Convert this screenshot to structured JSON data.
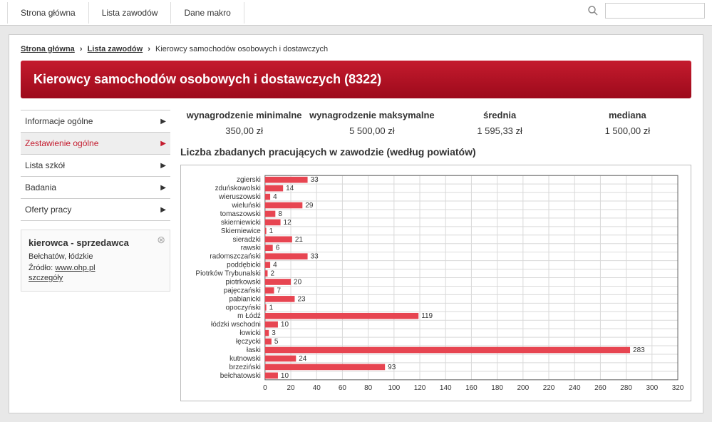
{
  "topnav": {
    "home": "Strona główna",
    "jobs": "Lista zawodów",
    "macro": "Dane makro"
  },
  "search": {
    "placeholder": ""
  },
  "breadcrumb": {
    "home": "Strona główna",
    "jobs": "Lista zawodów",
    "current": "Kierowcy samochodów osobowych i dostawczych"
  },
  "title": "Kierowcy samochodów osobowych i dostawczych (8322)",
  "sideMenu": {
    "items": [
      {
        "label": "Informacje ogólne",
        "active": false
      },
      {
        "label": "Zestawienie ogólne",
        "active": true
      },
      {
        "label": "Lista szkół",
        "active": false
      },
      {
        "label": "Badania",
        "active": false
      },
      {
        "label": "Oferty pracy",
        "active": false
      }
    ]
  },
  "infobox": {
    "title": "kierowca - sprzedawca",
    "location": "Bełchatów, łódzkie",
    "source_prefix": "Źródło: ",
    "source_link": "www.ohp.pl",
    "details": "szczegóły"
  },
  "stats": {
    "min": {
      "label": "wynagrodzenie minimalne",
      "value": "350,00 zł"
    },
    "max": {
      "label": "wynagrodzenie maksymalne",
      "value": "5 500,00 zł"
    },
    "avg": {
      "label": "średnia",
      "value": "1 595,33 zł"
    },
    "median": {
      "label": "mediana",
      "value": "1 500,00 zł"
    }
  },
  "chart": {
    "title": "Liczba zbadanych pracujących w zawodzie (według powiatów)",
    "type": "bar-horizontal",
    "bar_color": "#e74551",
    "grid_color": "#d9d9d9",
    "border_color": "#666666",
    "label_fontsize": 10,
    "value_fontsize": 10,
    "xlim": [
      0,
      320
    ],
    "xtick_step": 20,
    "categories": [
      "zgierski",
      "zduńskowolski",
      "wieruszowski",
      "wieluński",
      "tomaszowski",
      "skierniewicki",
      "Skierniewice",
      "sieradzki",
      "rawski",
      "radomszczański",
      "poddębicki",
      "Piotrków Trybunalski",
      "piotrkowski",
      "pajęczański",
      "pabianicki",
      "opoczyński",
      "m Łódź",
      "łódzki wschodni",
      "łowicki",
      "łęczycki",
      "łaski",
      "kutnowski",
      "brzeziński",
      "bełchatowski"
    ],
    "values": [
      33,
      14,
      4,
      29,
      8,
      12,
      1,
      21,
      6,
      33,
      4,
      2,
      20,
      7,
      23,
      1,
      119,
      10,
      3,
      5,
      283,
      24,
      93,
      10
    ]
  }
}
